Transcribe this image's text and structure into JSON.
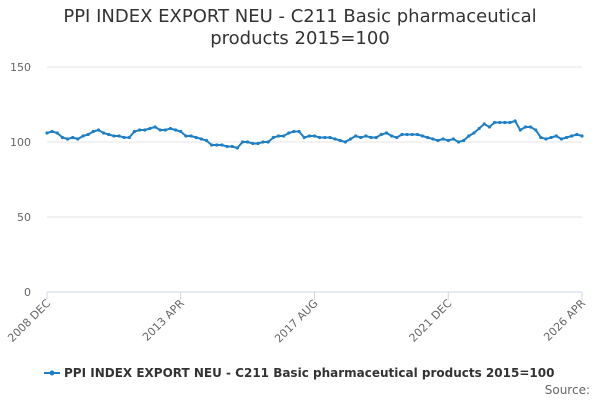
{
  "chart_data": {
    "type": "line",
    "title": "PPI INDEX EXPORT NEU - C211 Basic pharmaceutical products 2015=100",
    "categories": [
      "2008 DEC",
      null,
      null,
      null,
      null,
      null,
      null,
      null,
      null,
      null,
      null,
      null,
      null,
      null,
      null,
      null,
      null,
      null,
      null,
      null,
      null,
      null,
      null,
      null,
      null,
      null,
      "2013 APR",
      null,
      null,
      null,
      null,
      null,
      null,
      null,
      null,
      null,
      null,
      null,
      null,
      null,
      null,
      null,
      null,
      null,
      null,
      null,
      null,
      null,
      null,
      null,
      null,
      null,
      "2017 AUG",
      null,
      null,
      null,
      null,
      null,
      null,
      null,
      null,
      null,
      null,
      null,
      null,
      null,
      null,
      null,
      null,
      null,
      null,
      null,
      null,
      null,
      null,
      null,
      null,
      null,
      "2021 DEC",
      null,
      null,
      null,
      null,
      null,
      null,
      null,
      null,
      null,
      null,
      null,
      null,
      null,
      null,
      null,
      null,
      null,
      null,
      null,
      null,
      null,
      null,
      null,
      null,
      null,
      "2026 APR"
    ],
    "series": [
      {
        "name": "PPI INDEX EXPORT NEU - C211 Basic pharmaceutical products 2015=100",
        "color": "#1f7fc4",
        "values": [
          106,
          107,
          106,
          103,
          102,
          103,
          102,
          104,
          105,
          107,
          108,
          106,
          105,
          104,
          104,
          103,
          103,
          107,
          108,
          108,
          109,
          110,
          108,
          108,
          109,
          108,
          107,
          104,
          104,
          103,
          102,
          101,
          98,
          98,
          98,
          97,
          97,
          96,
          100,
          100,
          99,
          99,
          100,
          100,
          103,
          104,
          104,
          106,
          107,
          107,
          103,
          104,
          104,
          103,
          103,
          103,
          102,
          101,
          100,
          102,
          104,
          103,
          104,
          103,
          103,
          105,
          106,
          104,
          103,
          105,
          105,
          105,
          105,
          104,
          103,
          102,
          101,
          102,
          101,
          102,
          100,
          101,
          104,
          106,
          109,
          112,
          110,
          113,
          113,
          113,
          113,
          114,
          108,
          110,
          110,
          108,
          103,
          102,
          103,
          104,
          102,
          103,
          104,
          105,
          104
        ]
      }
    ],
    "ylim": [
      0,
      150
    ],
    "yticks": [
      0,
      50,
      100,
      150
    ],
    "grid": true,
    "source": "Source:"
  }
}
